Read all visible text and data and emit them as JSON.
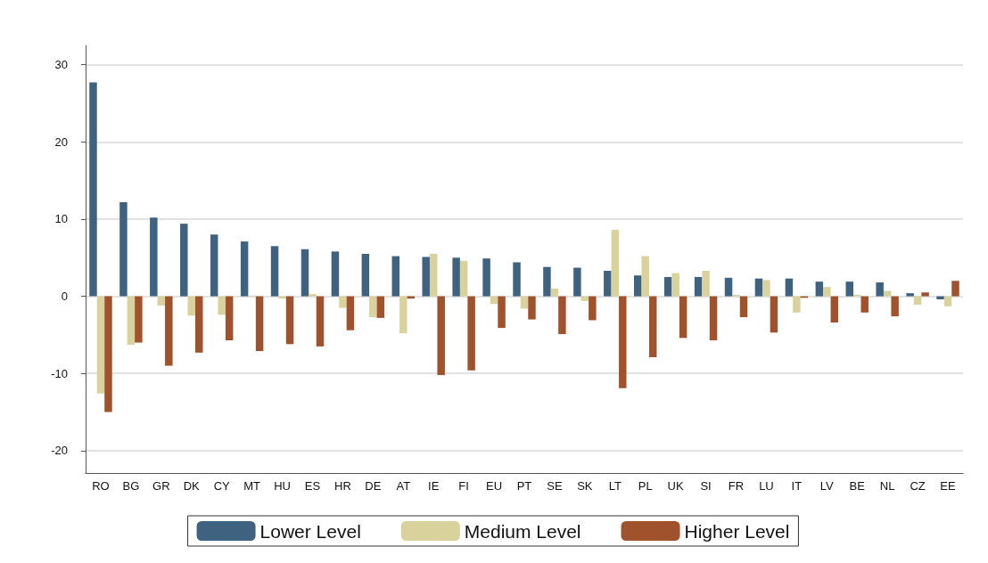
{
  "chart_data": {
    "type": "bar",
    "categories": [
      "RO",
      "BG",
      "GR",
      "DK",
      "CY",
      "MT",
      "HU",
      "ES",
      "HR",
      "DE",
      "AT",
      "IE",
      "FI",
      "EU",
      "PT",
      "SE",
      "SK",
      "LT",
      "PL",
      "UK",
      "SI",
      "FR",
      "LU",
      "IT",
      "LV",
      "BE",
      "NL",
      "CZ",
      "EE"
    ],
    "series": [
      {
        "name": "Lower Level",
        "color": "#3e6280",
        "values": [
          27.7,
          12.2,
          10.2,
          9.4,
          8.0,
          7.1,
          6.5,
          6.1,
          5.8,
          5.5,
          5.2,
          5.1,
          5.0,
          4.9,
          4.4,
          3.8,
          3.7,
          3.3,
          2.7,
          2.5,
          2.5,
          2.4,
          2.3,
          2.3,
          1.9,
          1.9,
          1.8,
          0.4,
          -0.4
        ]
      },
      {
        "name": "Medium Level",
        "color": "#d9d29c",
        "values": [
          -12.6,
          -6.3,
          -1.2,
          -2.5,
          -2.4,
          0.1,
          -0.3,
          0.3,
          -1.5,
          -2.7,
          -4.8,
          5.5,
          4.6,
          -1.0,
          -1.6,
          1.0,
          -0.6,
          8.6,
          5.2,
          3.0,
          3.3,
          0.2,
          2.1,
          -2.1,
          1.2,
          0.2,
          0.7,
          -1.1,
          -1.3
        ]
      },
      {
        "name": "Higher Level",
        "color": "#a0522d",
        "values": [
          -15.0,
          -6.0,
          -9.0,
          -7.3,
          -5.7,
          -7.1,
          -6.2,
          -6.5,
          -4.4,
          -2.8,
          -0.3,
          -10.2,
          -9.6,
          -4.1,
          -3.0,
          -4.9,
          -3.1,
          -11.9,
          -7.9,
          -5.4,
          -5.7,
          -2.7,
          -4.7,
          -0.2,
          -3.4,
          -2.1,
          -2.6,
          0.5,
          2.0
        ]
      }
    ],
    "ylim": [
      -22.9,
      32.5
    ],
    "yticks": [
      -20,
      -10,
      0,
      10,
      20,
      30
    ],
    "grid": "y",
    "legend": "bottom"
  }
}
